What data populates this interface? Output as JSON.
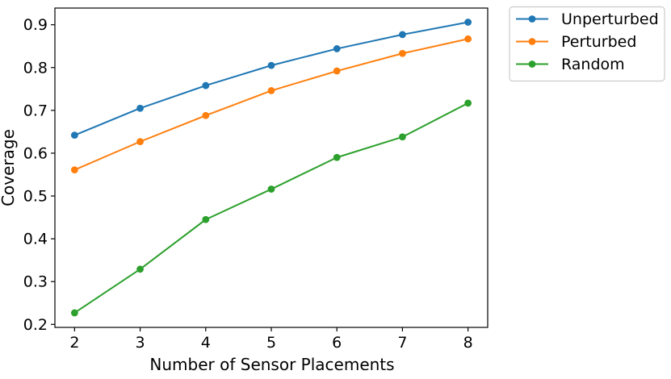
{
  "chart_data": {
    "type": "line",
    "title": "",
    "xlabel": "Number of Sensor Placements",
    "ylabel": "Coverage",
    "x": [
      2,
      3,
      4,
      5,
      6,
      7,
      8
    ],
    "series": [
      {
        "name": "Unperturbed",
        "color": "#1f77b4",
        "marker": "circle",
        "values": [
          0.642,
          0.705,
          0.758,
          0.805,
          0.844,
          0.877,
          0.906
        ]
      },
      {
        "name": "Perturbed",
        "color": "#ff7f0e",
        "marker": "circle",
        "values": [
          0.561,
          0.627,
          0.688,
          0.746,
          0.792,
          0.833,
          0.867
        ]
      },
      {
        "name": "Random",
        "color": "#2ca02c",
        "marker": "circle",
        "values": [
          0.227,
          0.329,
          0.445,
          0.516,
          0.59,
          0.638,
          0.717
        ]
      }
    ],
    "xticks": [
      2,
      3,
      4,
      5,
      6,
      7,
      8
    ],
    "yticks": [
      0.2,
      0.3,
      0.4,
      0.5,
      0.6,
      0.7,
      0.8,
      0.9
    ],
    "xlim": [
      1.7,
      8.3
    ],
    "ylim": [
      0.193,
      0.939
    ],
    "grid": false,
    "legend": {
      "position": "outside-top-right",
      "entries": [
        "Unperturbed",
        "Perturbed",
        "Random"
      ],
      "border_color": "#cccccc",
      "background": "#ffffff"
    },
    "axis_color": "#000000",
    "background": "#ffffff"
  }
}
